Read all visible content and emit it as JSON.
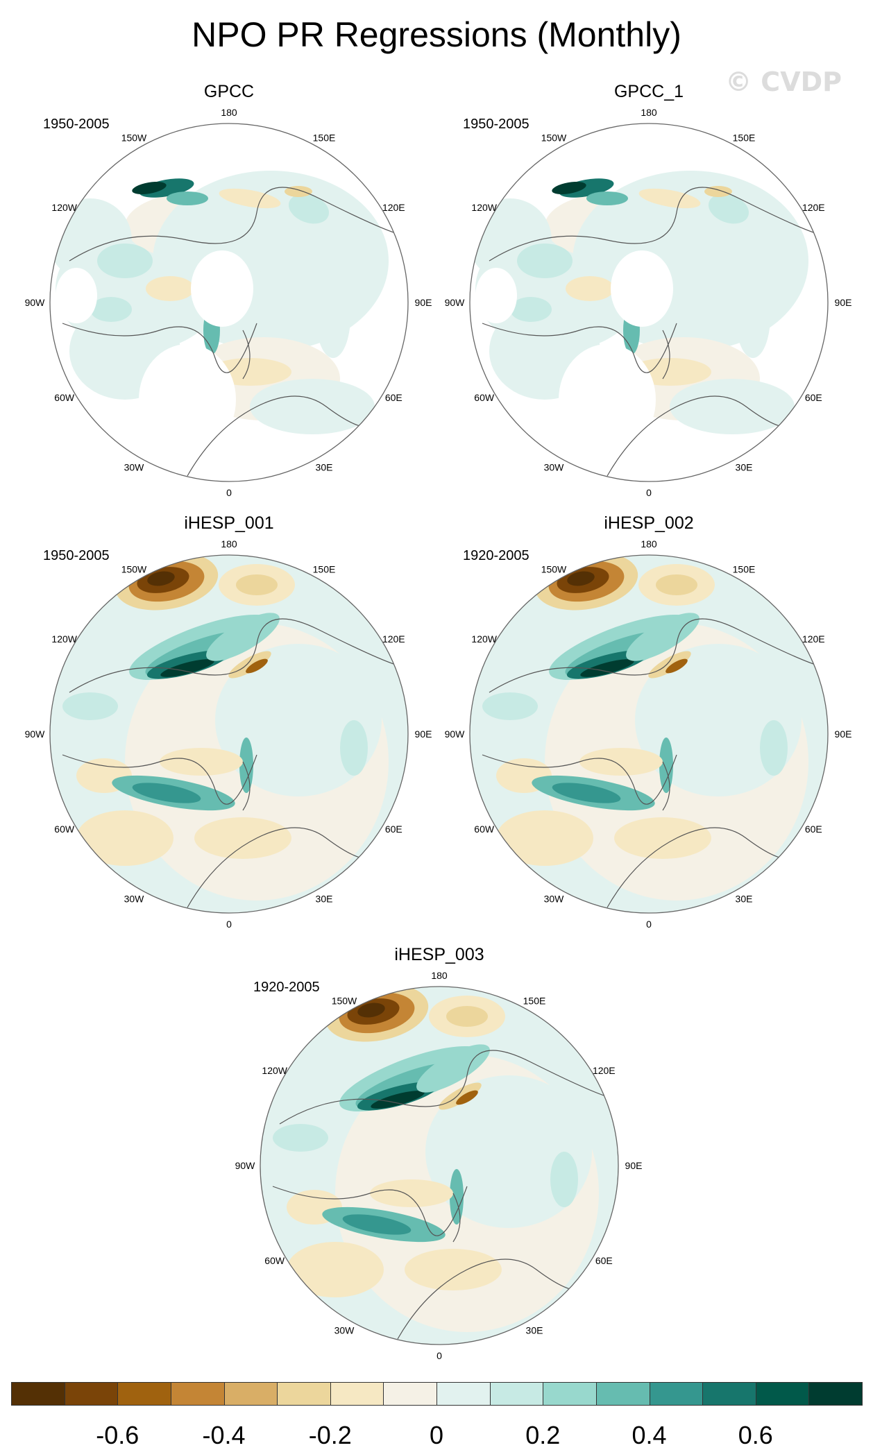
{
  "title": "NPO PR Regressions (Monthly)",
  "watermark": "© CVDP",
  "panels": [
    {
      "name": "GPCC",
      "period": "1950-2005",
      "land_only": true
    },
    {
      "name": "GPCC_1",
      "period": "1950-2005",
      "land_only": true
    },
    {
      "name": "iHESP_001",
      "period": "1950-2005",
      "land_only": false
    },
    {
      "name": "iHESP_002",
      "period": "1920-2005",
      "land_only": false
    },
    {
      "name": "iHESP_003",
      "period": "1920-2005",
      "land_only": false
    }
  ],
  "longitude_labels": {
    "l180": "180",
    "l150e": "150E",
    "l120e": "120E",
    "l90e": "90E",
    "l60e": "60E",
    "l30e": "30E",
    "l0": "0",
    "l30w": "30W",
    "l60w": "60W",
    "l90w": "90W",
    "l120w": "120W",
    "l150w": "150W"
  },
  "colorbar": {
    "colors": [
      "#543005",
      "#7a4408",
      "#a0620f",
      "#c48535",
      "#d9ae66",
      "#ecd69c",
      "#f6e8c3",
      "#f5f1e6",
      "#e2f2ef",
      "#c7eae4",
      "#98d8cd",
      "#66bcb0",
      "#35978f",
      "#17766c",
      "#01594a",
      "#003c30"
    ],
    "tick_labels": [
      "-0.6",
      "-0.4",
      "-0.2",
      "0",
      "0.2",
      "0.4",
      "0.6"
    ]
  }
}
